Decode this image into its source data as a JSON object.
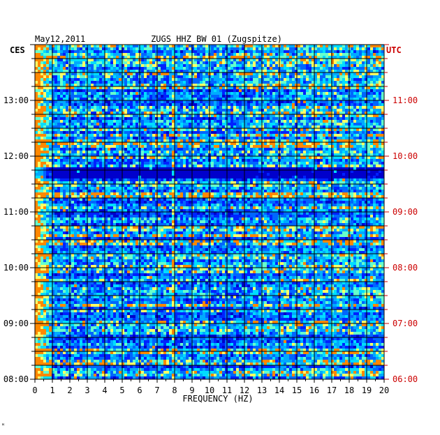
{
  "header": {
    "date": "May12,2011",
    "station": "ZUGS HHZ BW 01 (Zugspitze)",
    "left_timezone": "CES",
    "right_timezone": "UTC"
  },
  "corner_mark": "ᴹ",
  "chart_data": {
    "type": "heatmap",
    "title": "ZUGS HHZ BW 01 (Zugspitze)",
    "xlabel": "FREQUENCY (HZ)",
    "ylabel": "",
    "x_range": [
      0,
      20
    ],
    "x_ticks": [
      "0",
      "1",
      "2",
      "3",
      "4",
      "5",
      "6",
      "7",
      "8",
      "9",
      "10",
      "11",
      "12",
      "13",
      "14",
      "15",
      "16",
      "17",
      "18",
      "19",
      "20"
    ],
    "y_range_hours_local": [
      8,
      14
    ],
    "left_time_labels": [
      {
        "hour": 13,
        "label": "13:00"
      },
      {
        "hour": 12,
        "label": "12:00"
      },
      {
        "hour": 11,
        "label": "11:00"
      },
      {
        "hour": 10,
        "label": "10:00"
      },
      {
        "hour": 9,
        "label": "09:00"
      },
      {
        "hour": 8,
        "label": "08:00"
      }
    ],
    "right_time_labels": [
      {
        "hour": 13,
        "label": "11:00"
      },
      {
        "hour": 12,
        "label": "10:00"
      },
      {
        "hour": 11,
        "label": "09:00"
      },
      {
        "hour": 10,
        "label": "08:00"
      },
      {
        "hour": 9,
        "label": "07:00"
      },
      {
        "hour": 8,
        "label": "06:00"
      }
    ],
    "grid": true,
    "colormap": [
      "#000088",
      "#0000cc",
      "#0022ff",
      "#0066ff",
      "#00aaff",
      "#00ddff",
      "#66ffcc",
      "#ffff66",
      "#ff8800",
      "#cc0000"
    ],
    "features": [
      {
        "description": "strong low-frequency energy",
        "freq_range": [
          0,
          1
        ]
      },
      {
        "description": "narrow line",
        "freq": 7.9
      },
      {
        "description": "quiet band",
        "hour_range": [
          11.6,
          11.8
        ]
      }
    ]
  },
  "colors": {
    "background": "#ffffff",
    "left_axis_text": "#000000",
    "right_axis_text": "#cc0000",
    "grid": "#000000"
  }
}
